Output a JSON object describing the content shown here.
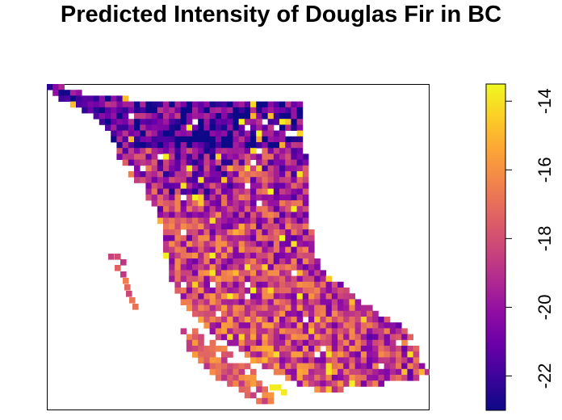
{
  "map": {
    "title": "Predicted Intensity of Douglas Fir in BC",
    "region": "British Columbia",
    "variable": "predicted intensity (log scale)",
    "palette": [
      "#0d0887",
      "#3b049a",
      "#6a00a8",
      "#900da4",
      "#b12a90",
      "#cc4778",
      "#e16462",
      "#f2844b",
      "#fca636",
      "#fcce25",
      "#f0f921"
    ]
  },
  "legend": {
    "min": -23,
    "max": -13.5,
    "ticks": [
      -22,
      -20,
      -18,
      -16,
      -14
    ],
    "tick_labels": [
      "-22",
      "-20",
      "-18",
      "-16",
      "-14"
    ]
  }
}
